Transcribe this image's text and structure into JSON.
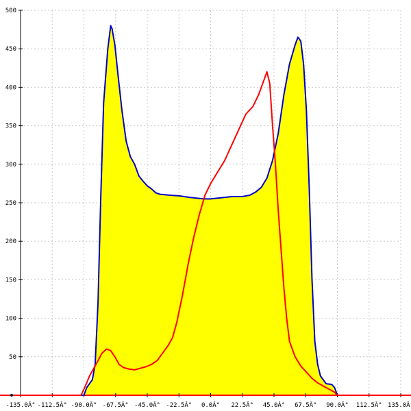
{
  "chart_data": {
    "type": "area",
    "title": "",
    "xlabel": "",
    "ylabel": "",
    "xlim": [
      -135,
      135
    ],
    "ylim": [
      0,
      500
    ],
    "grid": true,
    "x_ticks": [
      -135,
      -112.5,
      -90,
      -67.5,
      -45,
      -22.5,
      0,
      22.5,
      45,
      67.5,
      90,
      112.5,
      135
    ],
    "x_tick_labels": [
      "-135.0Â°",
      "-112.5Â°",
      "-90.0Â°",
      "-67.5Â°",
      "-45.0Â°",
      "-22.5Â°",
      "0.0Â°",
      "22.5Â°",
      "45.0Â°",
      "67.5Â°",
      "90.0Â°",
      "112.5Â°",
      "135.0Â°"
    ],
    "y_ticks": [
      50,
      100,
      150,
      200,
      250,
      300,
      350,
      400,
      450,
      500
    ],
    "y_tick_labels": [
      "50",
      "100",
      "150",
      "200",
      "250",
      "300",
      "350",
      "400",
      "450",
      "500"
    ],
    "fill_color": "#ffff00",
    "series": [
      {
        "color": "#0000cc",
        "fill": true,
        "points": [
          [
            -135,
            0
          ],
          [
            -90,
            0
          ],
          [
            -88,
            10
          ],
          [
            -86,
            15
          ],
          [
            -84,
            20
          ],
          [
            -82,
            40
          ],
          [
            -80,
            120
          ],
          [
            -78,
            260
          ],
          [
            -76,
            380
          ],
          [
            -73,
            450
          ],
          [
            -71,
            480
          ],
          [
            -70,
            476
          ],
          [
            -68,
            455
          ],
          [
            -66,
            420
          ],
          [
            -63,
            370
          ],
          [
            -60,
            330
          ],
          [
            -57,
            310
          ],
          [
            -54,
            300
          ],
          [
            -51,
            285
          ],
          [
            -48,
            278
          ],
          [
            -45,
            272
          ],
          [
            -42,
            268
          ],
          [
            -39,
            263
          ],
          [
            -36,
            261
          ],
          [
            -30,
            260
          ],
          [
            -22.5,
            259
          ],
          [
            -15,
            257
          ],
          [
            -10,
            256
          ],
          [
            -5,
            255
          ],
          [
            0,
            255
          ],
          [
            5,
            256
          ],
          [
            10,
            257
          ],
          [
            15,
            258
          ],
          [
            22.5,
            258
          ],
          [
            28,
            260
          ],
          [
            32,
            264
          ],
          [
            36,
            270
          ],
          [
            40,
            282
          ],
          [
            44,
            305
          ],
          [
            48,
            340
          ],
          [
            52,
            390
          ],
          [
            56,
            430
          ],
          [
            60,
            455
          ],
          [
            62,
            465
          ],
          [
            64,
            460
          ],
          [
            66,
            430
          ],
          [
            68,
            370
          ],
          [
            70,
            270
          ],
          [
            72,
            150
          ],
          [
            74,
            70
          ],
          [
            76,
            40
          ],
          [
            78,
            25
          ],
          [
            82,
            15
          ],
          [
            86,
            14
          ],
          [
            88,
            10
          ],
          [
            90,
            0
          ],
          [
            135,
            0
          ]
        ]
      },
      {
        "color": "#ff0000",
        "fill": false,
        "points": [
          [
            -135,
            0
          ],
          [
            -92,
            0
          ],
          [
            -89,
            12
          ],
          [
            -86,
            25
          ],
          [
            -83,
            35
          ],
          [
            -80,
            45
          ],
          [
            -77,
            55
          ],
          [
            -74,
            60
          ],
          [
            -71,
            58
          ],
          [
            -68,
            50
          ],
          [
            -65,
            40
          ],
          [
            -62,
            36
          ],
          [
            -58,
            34
          ],
          [
            -54,
            33
          ],
          [
            -50,
            35
          ],
          [
            -46,
            37
          ],
          [
            -42,
            40
          ],
          [
            -38,
            45
          ],
          [
            -34,
            55
          ],
          [
            -30,
            65
          ],
          [
            -27,
            75
          ],
          [
            -24,
            95
          ],
          [
            -20,
            130
          ],
          [
            -16,
            170
          ],
          [
            -12,
            205
          ],
          [
            -8,
            235
          ],
          [
            -4,
            260
          ],
          [
            0,
            275
          ],
          [
            5,
            290
          ],
          [
            10,
            305
          ],
          [
            15,
            325
          ],
          [
            20,
            345
          ],
          [
            25,
            365
          ],
          [
            30,
            375
          ],
          [
            34,
            390
          ],
          [
            38,
            410
          ],
          [
            40,
            420
          ],
          [
            42,
            405
          ],
          [
            44,
            350
          ],
          [
            46,
            300
          ],
          [
            48,
            240
          ],
          [
            50,
            190
          ],
          [
            52,
            140
          ],
          [
            54,
            100
          ],
          [
            56,
            70
          ],
          [
            60,
            50
          ],
          [
            64,
            38
          ],
          [
            68,
            30
          ],
          [
            72,
            22
          ],
          [
            76,
            16
          ],
          [
            80,
            12
          ],
          [
            84,
            8
          ],
          [
            88,
            4
          ],
          [
            90,
            0
          ],
          [
            135,
            0
          ]
        ]
      }
    ]
  }
}
